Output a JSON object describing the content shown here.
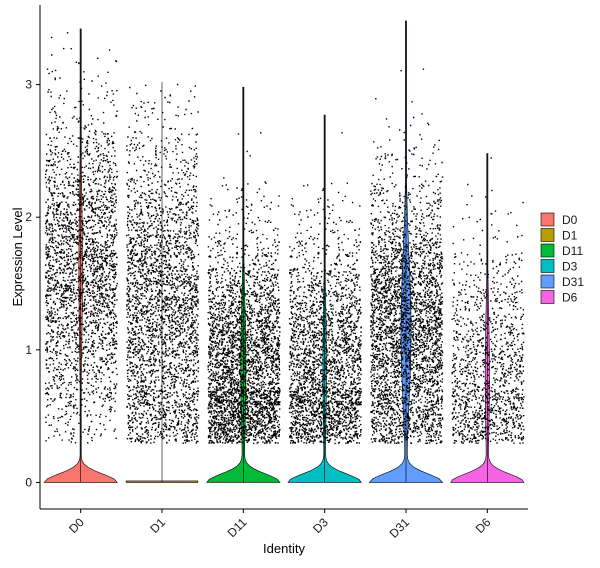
{
  "chart_data": {
    "type": "violin",
    "title": "",
    "xlabel": "Identity",
    "ylabel": "Expression Level",
    "ylim": [
      -0.2,
      3.6
    ],
    "yticks": [
      0,
      1,
      2,
      3
    ],
    "grid": false,
    "legend_position": "right",
    "series": [
      {
        "name": "D0",
        "color": "#F8766D",
        "max": 3.42,
        "zero_fraction": 0.55,
        "mean_nonzero": 1.6,
        "sd_nonzero": 0.6,
        "points": 2600
      },
      {
        "name": "D1",
        "color": "#B79F00",
        "max": 3.02,
        "zero_fraction": 0.98,
        "mean_nonzero": 1.3,
        "sd_nonzero": 0.65,
        "points": 2900
      },
      {
        "name": "D11",
        "color": "#00BA38",
        "max": 2.98,
        "zero_fraction": 0.45,
        "mean_nonzero": 0.85,
        "sd_nonzero": 0.5,
        "points": 4200
      },
      {
        "name": "D3",
        "color": "#00BFC4",
        "max": 2.77,
        "zero_fraction": 0.55,
        "mean_nonzero": 0.85,
        "sd_nonzero": 0.5,
        "points": 2600
      },
      {
        "name": "D31",
        "color": "#619CFF",
        "max": 3.48,
        "zero_fraction": 0.3,
        "mean_nonzero": 1.15,
        "sd_nonzero": 0.55,
        "points": 7000
      },
      {
        "name": "D6",
        "color": "#F564E3",
        "max": 2.48,
        "zero_fraction": 0.5,
        "mean_nonzero": 0.8,
        "sd_nonzero": 0.5,
        "points": 1300
      }
    ]
  }
}
